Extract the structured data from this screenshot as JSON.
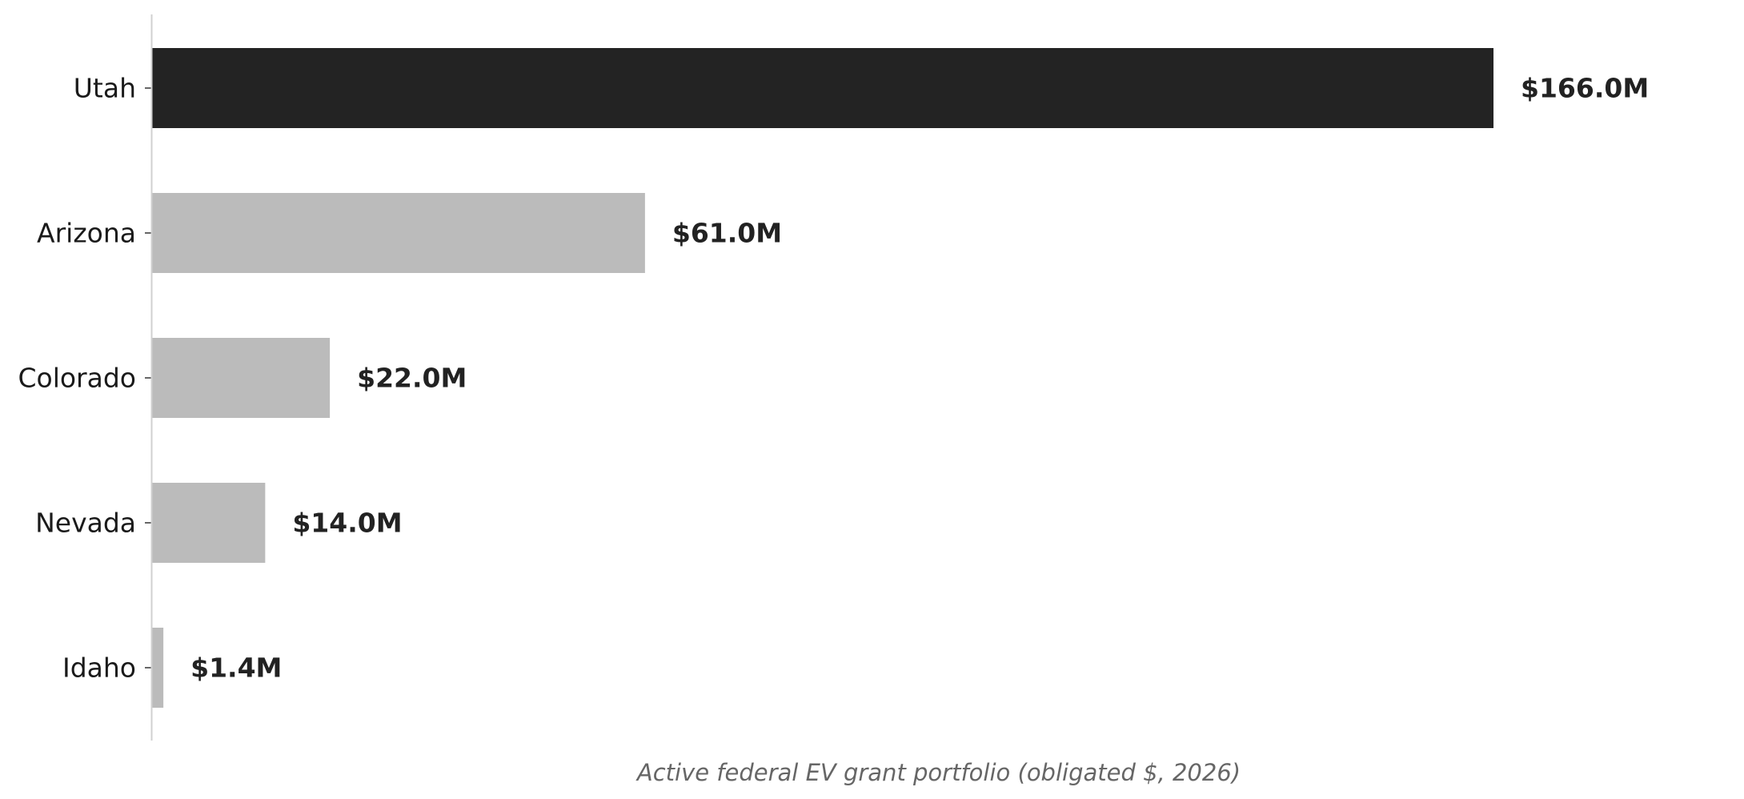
{
  "chart_data": {
    "type": "bar",
    "orientation": "horizontal",
    "categories": [
      "Utah",
      "Arizona",
      "Colorado",
      "Nevada",
      "Idaho"
    ],
    "values": [
      166.0,
      61.0,
      22.0,
      14.0,
      1.4
    ],
    "value_labels": [
      "$166.0M",
      "$61.0M",
      "$22.0M",
      "$14.0M",
      "$1.4M"
    ],
    "unit": "$M",
    "xlabel": "Active federal EV grant portfolio (obligated $, 2026)",
    "ylabel": "",
    "title": "",
    "xlim": [
      0,
      166.0
    ],
    "grid": false,
    "legend": "none",
    "colors": {
      "highlight": "#232323",
      "default": "#bbbbbb",
      "axis": "#d0d0d0",
      "tick": "#333333"
    },
    "highlight_category": "Utah"
  }
}
